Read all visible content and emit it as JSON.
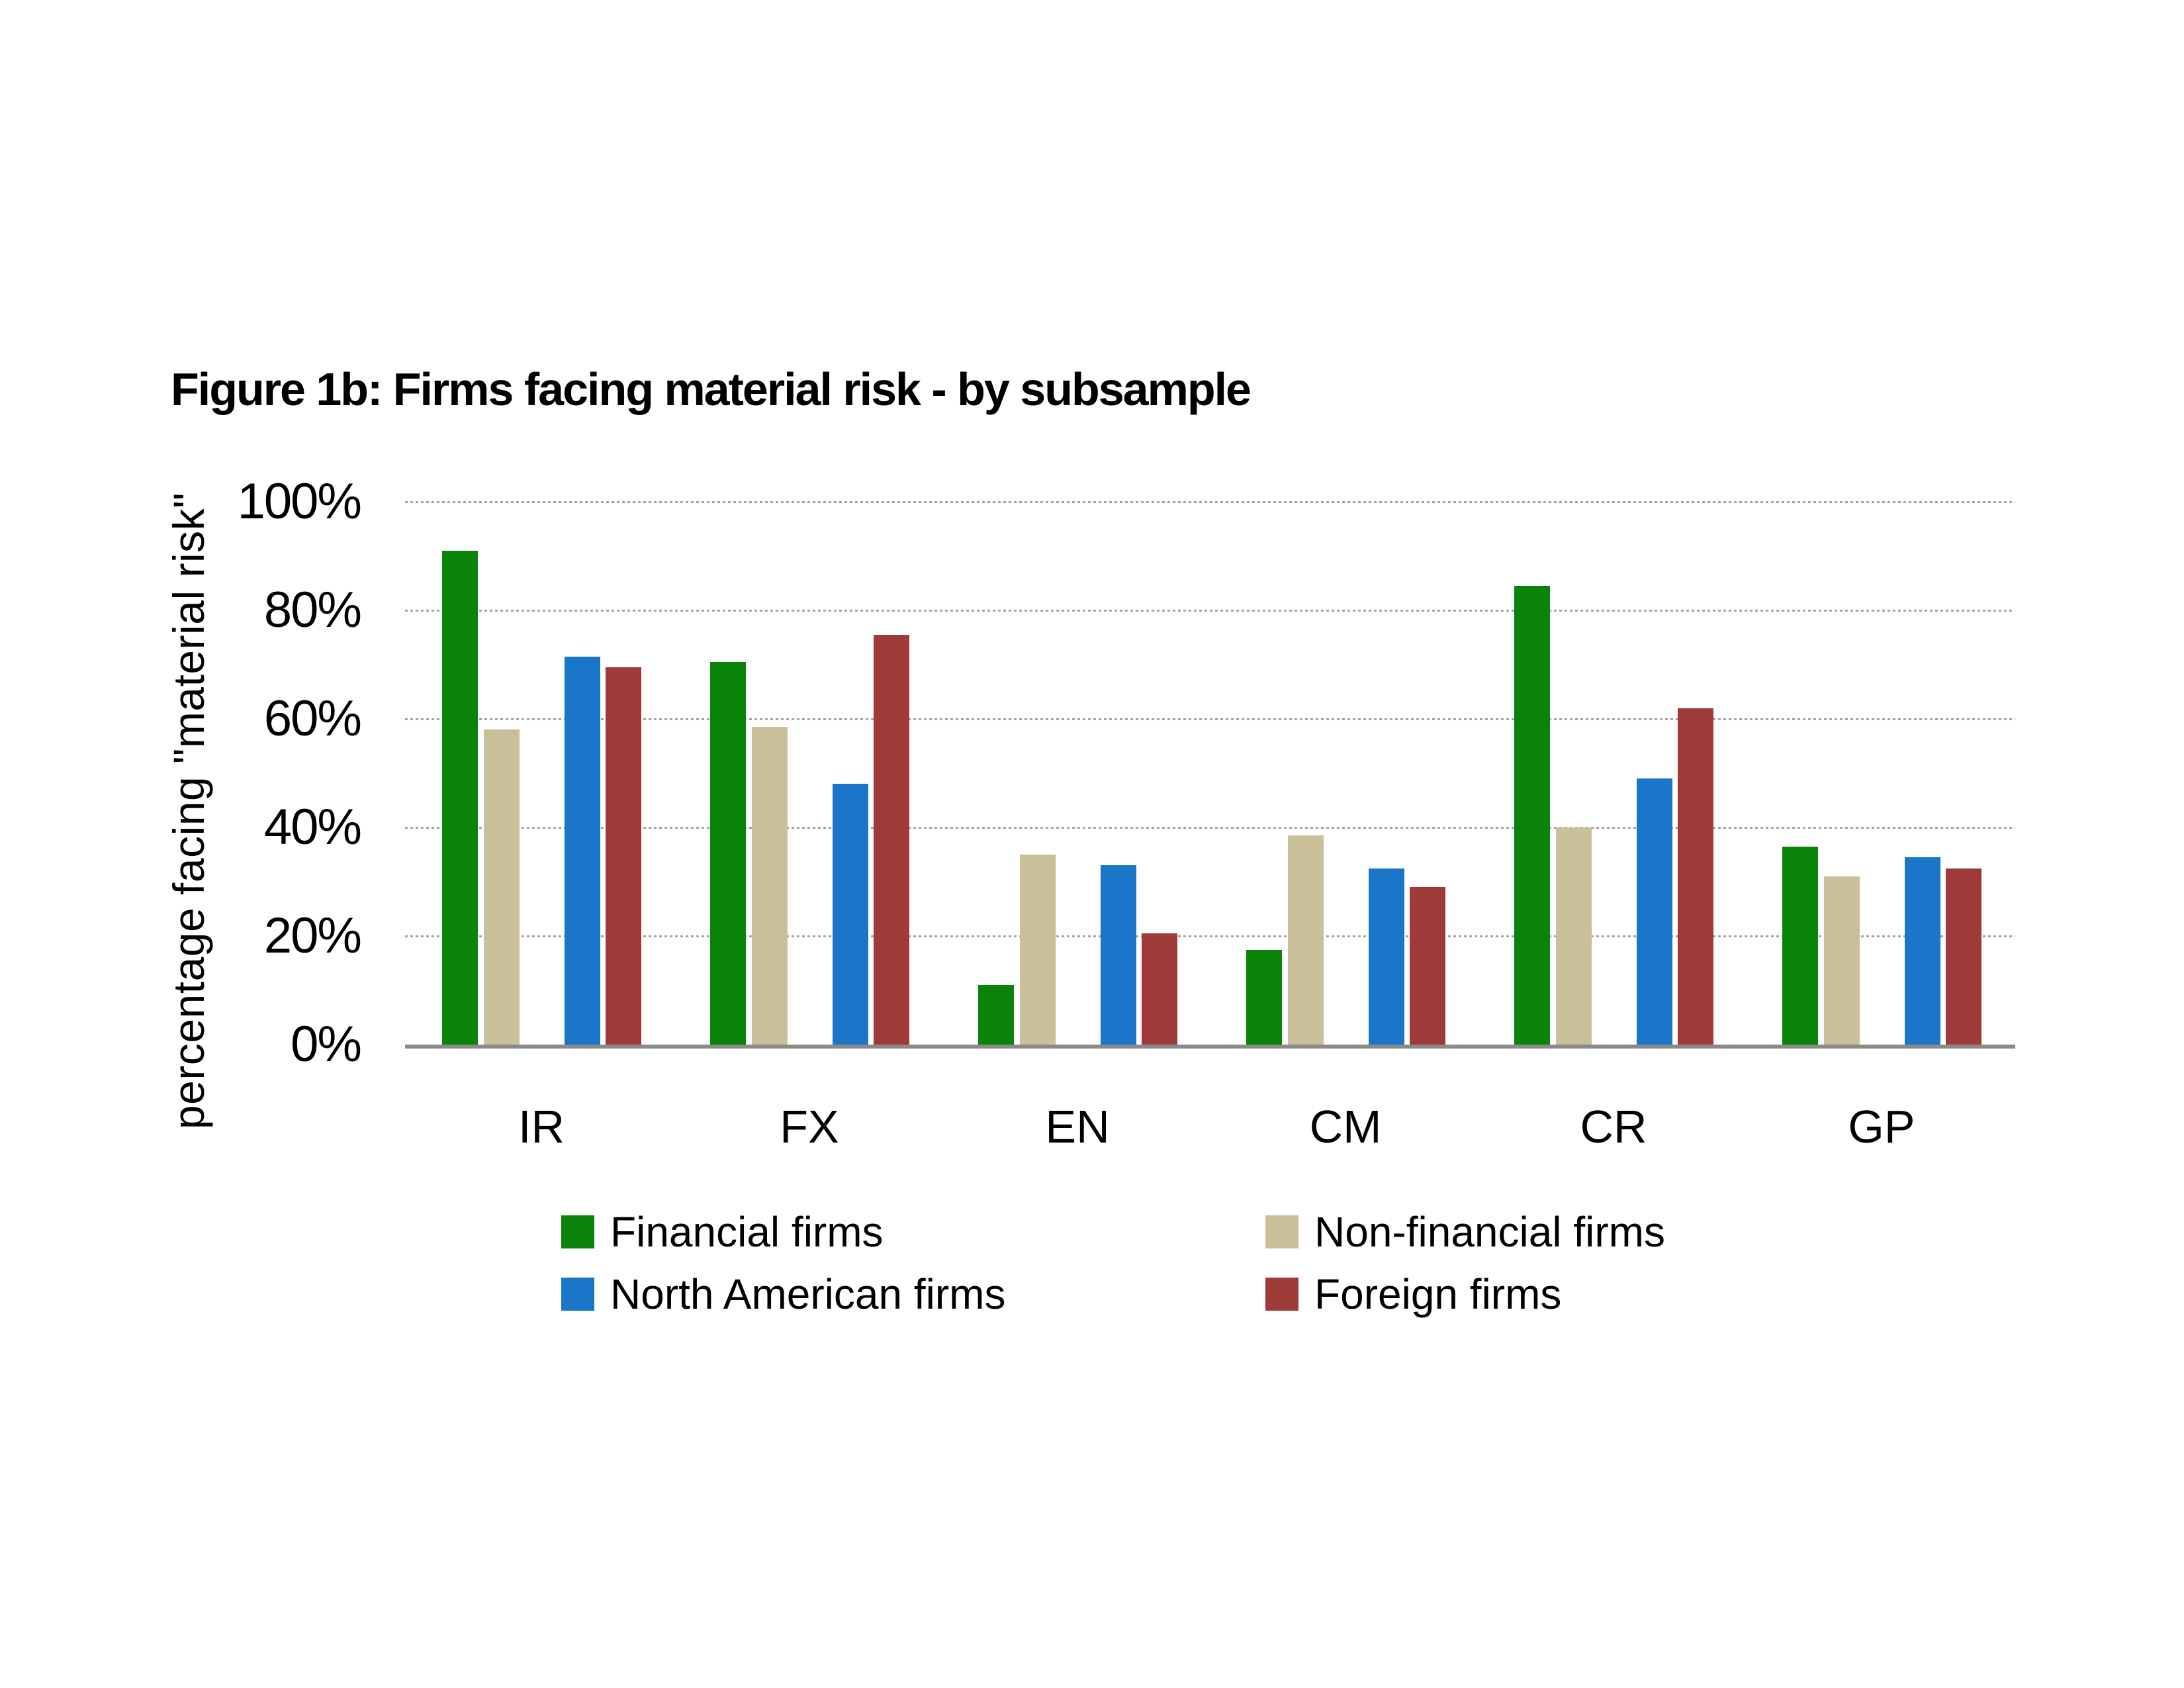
{
  "chart_data": {
    "type": "bar",
    "title": "Figure 1b: Firms facing material risk - by subsample",
    "ylabel": "percentage facing \"material risk\"",
    "xlabel": "",
    "categories": [
      "IR",
      "FX",
      "EN",
      "CM",
      "CR",
      "GP"
    ],
    "series": [
      {
        "name": "Financial firms",
        "color": "#098409",
        "values": [
          91,
          70.5,
          11,
          17.5,
          84.5,
          36.5
        ]
      },
      {
        "name": "Non-financial firms",
        "color": "#c9bf98",
        "values": [
          58,
          58.5,
          35,
          38.5,
          40,
          31
        ]
      },
      {
        "name": "North American firms",
        "color": "#1976c8",
        "values": [
          71.5,
          48,
          33,
          32.5,
          49,
          34.5
        ]
      },
      {
        "name": "Foreign firms",
        "color": "#9e3b38",
        "values": [
          69.5,
          75.5,
          20.5,
          29,
          62,
          32.5
        ]
      }
    ],
    "ylim": [
      0,
      100
    ],
    "yticks": [
      {
        "label": "0%",
        "value": 0
      },
      {
        "label": "20%",
        "value": 20
      },
      {
        "label": "40%",
        "value": 40
      },
      {
        "label": "60%",
        "value": 60
      },
      {
        "label": "80%",
        "value": 80
      },
      {
        "label": "100%",
        "value": 100
      }
    ],
    "grid": "horizontal-dashed",
    "legend_position": "bottom-two-columns"
  }
}
